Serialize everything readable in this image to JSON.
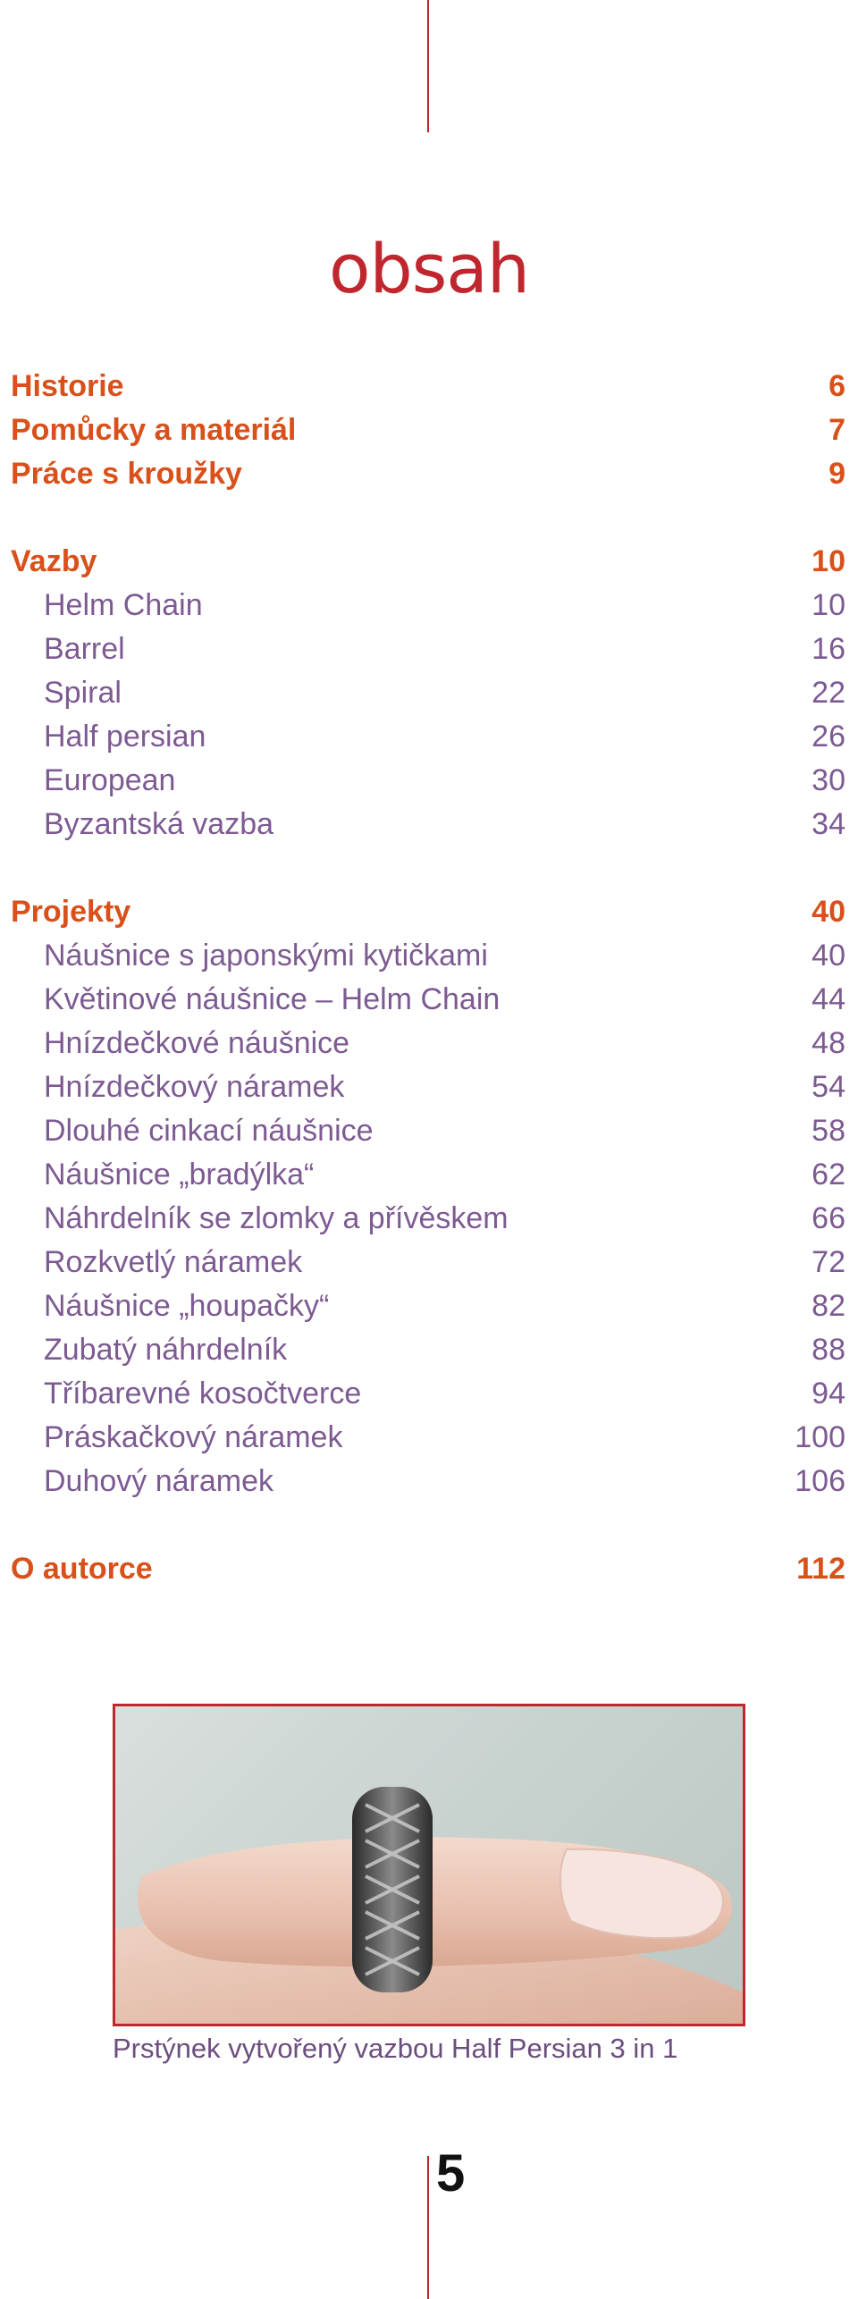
{
  "title": "obsah",
  "toc": [
    {
      "label": "Historie",
      "page": "6",
      "level": "main"
    },
    {
      "label": "Pomůcky a materiál",
      "page": "7",
      "level": "main"
    },
    {
      "label": "Práce s kroužky",
      "page": "9",
      "level": "main"
    },
    {
      "label": "Vazby",
      "page": "10",
      "level": "main"
    },
    {
      "label": "Helm Chain",
      "page": "10",
      "level": "sub"
    },
    {
      "label": "Barrel",
      "page": "16",
      "level": "sub"
    },
    {
      "label": "Spiral",
      "page": "22",
      "level": "sub"
    },
    {
      "label": "Half persian",
      "page": "26",
      "level": "sub"
    },
    {
      "label": "European",
      "page": "30",
      "level": "sub"
    },
    {
      "label": "Byzantská vazba",
      "page": "34",
      "level": "sub"
    },
    {
      "label": "Projekty",
      "page": "40",
      "level": "main"
    },
    {
      "label": "Náušnice s japonskými kytičkami",
      "page": "40",
      "level": "sub"
    },
    {
      "label": "Květinové náušnice – Helm Chain",
      "page": "44",
      "level": "sub"
    },
    {
      "label": "Hnízdečkové náušnice",
      "page": "48",
      "level": "sub"
    },
    {
      "label": "Hnízdečkový náramek",
      "page": "54",
      "level": "sub"
    },
    {
      "label": "Dlouhé cinkací náušnice",
      "page": "58",
      "level": "sub"
    },
    {
      "label": "Náušnice „bradýlka“",
      "page": "62",
      "level": "sub"
    },
    {
      "label": "Náhrdelník se zlomky a přívěskem",
      "page": "66",
      "level": "sub"
    },
    {
      "label": "Rozkvetlý náramek",
      "page": "72",
      "level": "sub"
    },
    {
      "label": "Náušnice „houpačky“",
      "page": "82",
      "level": "sub"
    },
    {
      "label": "Zubatý náhrdelník",
      "page": "88",
      "level": "sub"
    },
    {
      "label": "Tříbarevné kosočtverce",
      "page": "94",
      "level": "sub"
    },
    {
      "label": "Práskačkový náramek",
      "page": "100",
      "level": "sub"
    },
    {
      "label": "Duhový náramek",
      "page": "106",
      "level": "sub"
    },
    {
      "label": "O autorce",
      "page": "112",
      "level": "main"
    }
  ],
  "photo": {
    "subject": "ring-on-finger"
  },
  "caption": "Prstýnek vytvořený vazbou Half Persian 3 in 1",
  "page_number": "5",
  "colors": {
    "accent_red": "#c0262e",
    "heading_orange": "#d9501a",
    "entry_purple": "#7d5a92"
  }
}
